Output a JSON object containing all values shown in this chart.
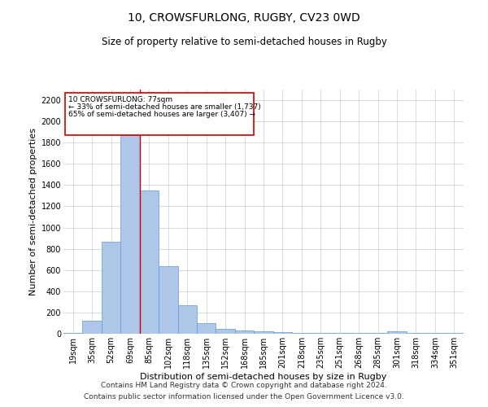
{
  "title": "10, CROWSFURLONG, RUGBY, CV23 0WD",
  "subtitle": "Size of property relative to semi-detached houses in Rugby",
  "xlabel": "Distribution of semi-detached houses by size in Rugby",
  "ylabel": "Number of semi-detached properties",
  "footer1": "Contains HM Land Registry data © Crown copyright and database right 2024.",
  "footer2": "Contains public sector information licensed under the Open Government Licence v3.0.",
  "bar_labels": [
    "19sqm",
    "35sqm",
    "52sqm",
    "69sqm",
    "85sqm",
    "102sqm",
    "118sqm",
    "135sqm",
    "152sqm",
    "168sqm",
    "185sqm",
    "201sqm",
    "218sqm",
    "235sqm",
    "251sqm",
    "268sqm",
    "285sqm",
    "301sqm",
    "318sqm",
    "334sqm",
    "351sqm"
  ],
  "bar_values": [
    10,
    125,
    870,
    1870,
    1350,
    640,
    270,
    100,
    45,
    30,
    20,
    15,
    10,
    10,
    10,
    10,
    10,
    25,
    10,
    5,
    5
  ],
  "bar_color": "#aec6e8",
  "bar_edgecolor": "#5b9bd5",
  "property_sqm": 77,
  "property_label": "10 CROWSFURLONG: 77sqm",
  "smaller_pct": "33%",
  "smaller_count": "1,737",
  "larger_pct": "65%",
  "larger_count": "3,407",
  "vline_color": "#cc0000",
  "annotation_box_color": "#cc0000",
  "ylim": [
    0,
    2300
  ],
  "yticks": [
    0,
    200,
    400,
    600,
    800,
    1000,
    1200,
    1400,
    1600,
    1800,
    2000,
    2200
  ],
  "bg_color": "#ffffff",
  "grid_color": "#cccccc",
  "title_fontsize": 10,
  "subtitle_fontsize": 8.5,
  "axis_label_fontsize": 8,
  "tick_fontsize": 7,
  "annotation_fontsize": 6.5,
  "footer_fontsize": 6.5
}
